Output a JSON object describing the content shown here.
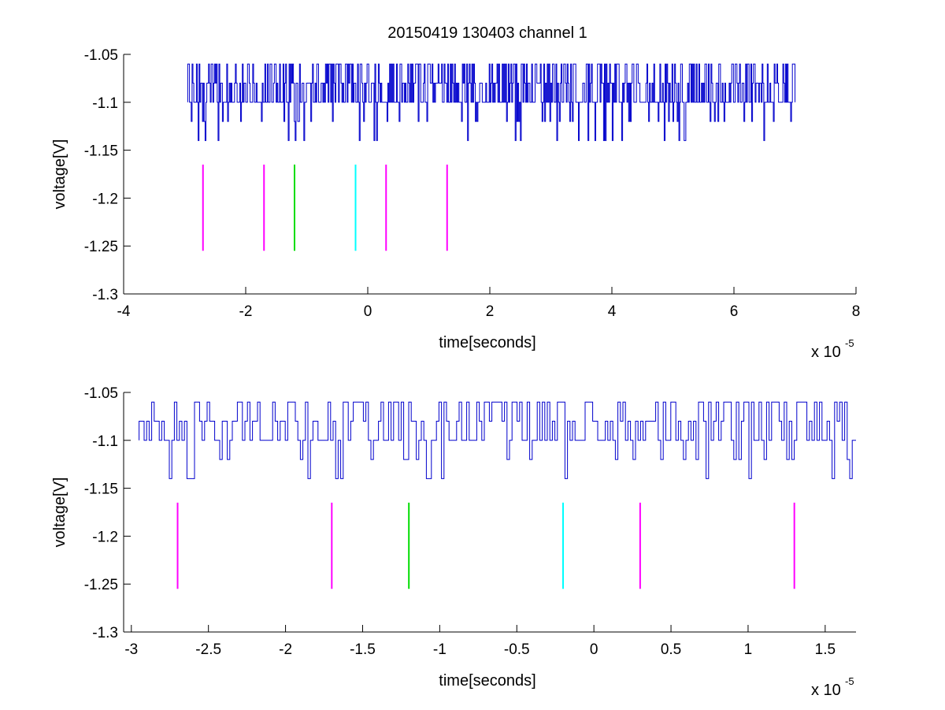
{
  "title": "20150419 130403 channel 1",
  "colors": {
    "signal": "#0000cc",
    "magenta": "#ff00ff",
    "green": "#00dd00",
    "cyan": "#00ffff",
    "axes": "#000000"
  },
  "chart_data": [
    {
      "type": "line",
      "title": "20150419 130403 channel 1",
      "xlabel": "time[seconds]",
      "ylabel": "voltage[V]",
      "x_multiplier_label": "x 10",
      "x_multiplier_exponent": "-5",
      "xlim": [
        -4,
        8
      ],
      "ylim": [
        -1.3,
        -1.05
      ],
      "xticks": [
        -4,
        -2,
        0,
        2,
        4,
        6,
        8
      ],
      "xtick_labels": [
        "-4",
        "-2",
        "0",
        "2",
        "4",
        "6",
        "8"
      ],
      "yticks": [
        -1.05,
        -1.1,
        -1.15,
        -1.2,
        -1.25,
        -1.3
      ],
      "ytick_labels": [
        "-1.05",
        "-1.1",
        "-1.15",
        "-1.2",
        "-1.25",
        "-1.3"
      ],
      "grid": false,
      "series": [
        {
          "kind": "signal",
          "x_range": [
            -2.95,
            7.0
          ],
          "levels": [
            -1.06,
            -1.08,
            -1.1,
            -1.12,
            -1.14
          ],
          "baseline": -1.1,
          "color": "#0000cc"
        }
      ],
      "markers": [
        {
          "x": -2.7,
          "y_range": [
            -1.255,
            -1.165
          ],
          "color": "#ff00ff"
        },
        {
          "x": -1.7,
          "y_range": [
            -1.255,
            -1.165
          ],
          "color": "#ff00ff"
        },
        {
          "x": -1.2,
          "y_range": [
            -1.255,
            -1.165
          ],
          "color": "#00dd00"
        },
        {
          "x": -0.2,
          "y_range": [
            -1.255,
            -1.165
          ],
          "color": "#00ffff"
        },
        {
          "x": 0.3,
          "y_range": [
            -1.255,
            -1.165
          ],
          "color": "#ff00ff"
        },
        {
          "x": 1.3,
          "y_range": [
            -1.255,
            -1.165
          ],
          "color": "#ff00ff"
        }
      ]
    },
    {
      "type": "line",
      "xlabel": "time[seconds]",
      "ylabel": "voltage[V]",
      "x_multiplier_label": "x 10",
      "x_multiplier_exponent": "-5",
      "xlim": [
        -3.05,
        1.7
      ],
      "ylim": [
        -1.3,
        -1.05
      ],
      "xticks": [
        -3,
        -2.5,
        -2,
        -1.5,
        -1,
        -0.5,
        0,
        0.5,
        1,
        1.5
      ],
      "xtick_labels": [
        "-3",
        "-2.5",
        "-2",
        "-1.5",
        "-1",
        "-0.5",
        "0",
        "0.5",
        "1",
        "1.5"
      ],
      "yticks": [
        -1.05,
        -1.1,
        -1.15,
        -1.2,
        -1.25,
        -1.3
      ],
      "ytick_labels": [
        "-1.05",
        "-1.1",
        "-1.15",
        "-1.2",
        "-1.25",
        "-1.3"
      ],
      "grid": false,
      "series": [
        {
          "kind": "signal",
          "x_range": [
            -2.95,
            1.7
          ],
          "levels": [
            -1.06,
            -1.08,
            -1.1,
            -1.12,
            -1.14
          ],
          "baseline": -1.1,
          "color": "#0000cc"
        }
      ],
      "markers": [
        {
          "x": -2.7,
          "y_range": [
            -1.255,
            -1.165
          ],
          "color": "#ff00ff"
        },
        {
          "x": -1.7,
          "y_range": [
            -1.255,
            -1.165
          ],
          "color": "#ff00ff"
        },
        {
          "x": -1.2,
          "y_range": [
            -1.255,
            -1.165
          ],
          "color": "#00dd00"
        },
        {
          "x": -0.2,
          "y_range": [
            -1.255,
            -1.165
          ],
          "color": "#00ffff"
        },
        {
          "x": 0.3,
          "y_range": [
            -1.255,
            -1.165
          ],
          "color": "#ff00ff"
        },
        {
          "x": 1.3,
          "y_range": [
            -1.255,
            -1.165
          ],
          "color": "#ff00ff"
        }
      ]
    }
  ]
}
